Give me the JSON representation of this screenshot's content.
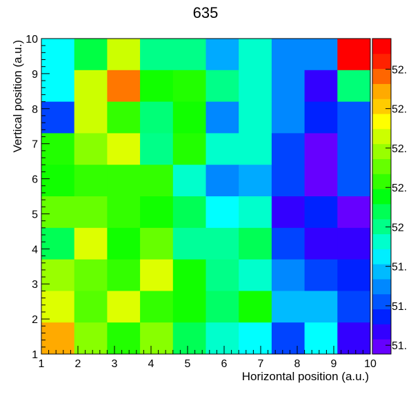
{
  "chart_data": {
    "type": "heatmap",
    "title": "635",
    "xlabel": "Horizontal position (a.u.)",
    "ylabel": "Vertical position (a.u.)",
    "xlim": [
      1,
      10
    ],
    "ylim": [
      1,
      10
    ],
    "x_ticks": [
      "1",
      "2",
      "3",
      "4",
      "5",
      "6",
      "7",
      "8",
      "9",
      "10"
    ],
    "y_ticks": [
      "1",
      "2",
      "3",
      "4",
      "5",
      "6",
      "7",
      "8",
      "9",
      "10"
    ],
    "colorbar_labels": [
      "51.",
      "51.",
      "51.",
      "52",
      "52.",
      "52.",
      "52.",
      "52."
    ],
    "colorbar_colors": [
      "#6600ff",
      "#3300ff",
      "#0022ff",
      "#0055ff",
      "#0088ff",
      "#00bbff",
      "#00eeff",
      "#00ffcc",
      "#00ff88",
      "#00ff55",
      "#00ff11",
      "#33ff00",
      "#66ff00",
      "#99ff00",
      "#ccff00",
      "#ffff00",
      "#ffcc00",
      "#ffaa00",
      "#ff6600",
      "#ff2200",
      "#ff0000"
    ],
    "rows": [
      {
        "y": 9,
        "colors": [
          "#00ffff",
          "#00ff44",
          "#ccff00",
          "#00ff88",
          "#00ff88",
          "#00aaff",
          "#00ffcc",
          "#0088ff",
          "#0088ff",
          "#ff0000"
        ]
      },
      {
        "y": 8,
        "colors": [
          "#00ffff",
          "#ccff00",
          "#ff7700",
          "#11ff00",
          "#22ff00",
          "#00ff88",
          "#00ffcc",
          "#0088ff",
          "#3300ff",
          "#00ff77"
        ]
      },
      {
        "y": 7,
        "colors": [
          "#0044ff",
          "#ccff00",
          "#33ff00",
          "#00ff77",
          "#11ff00",
          "#0088ff",
          "#00ffcc",
          "#0088ff",
          "#0022ff",
          "#0055ff"
        ]
      },
      {
        "y": 6,
        "colors": [
          "#22ff00",
          "#88ff00",
          "#ddff00",
          "#00ff88",
          "#22ff00",
          "#00ffcc",
          "#00ffcc",
          "#0044ff",
          "#6600ff",
          "#0055ff"
        ]
      },
      {
        "y": 5,
        "colors": [
          "#11ff00",
          "#33ff00",
          "#33ff00",
          "#33ff00",
          "#00ffcc",
          "#0088ff",
          "#00aaff",
          "#0044ff",
          "#6600ff",
          "#0055ff"
        ]
      },
      {
        "y": 4,
        "colors": [
          "#66ff00",
          "#66ff00",
          "#33ff00",
          "#11ff00",
          "#00ff55",
          "#00ffff",
          "#00ffcc",
          "#3300ff",
          "#0022ff",
          "#6600ff"
        ]
      },
      {
        "y": 3,
        "colors": [
          "#00ff55",
          "#ddff00",
          "#11ff00",
          "#66ff00",
          "#00ff99",
          "#00ff99",
          "#00ff55",
          "#0044ff",
          "#3300ff",
          "#3300ff"
        ]
      },
      {
        "y": 2,
        "colors": [
          "#99ff00",
          "#66ff00",
          "#33ff00",
          "#ddff00",
          "#11ff00",
          "#00ff88",
          "#00ffcc",
          "#0088ff",
          "#0044ff",
          "#0022ff"
        ]
      },
      {
        "y": 1,
        "colors": [
          "#ddff00",
          "#55ff00",
          "#ddff00",
          "#33ff00",
          "#11ff00",
          "#00ff66",
          "#11ff00",
          "#00bbff",
          "#00bbff",
          "#0044ff"
        ]
      },
      {
        "y": 0,
        "colors": [
          "#ffaa00",
          "#88ff00",
          "#22ff00",
          "#88ff00",
          "#00ff55",
          "#00ffcc",
          "#00ffff",
          "#0044ff",
          "#00ffff",
          "#3300ff"
        ]
      }
    ]
  }
}
